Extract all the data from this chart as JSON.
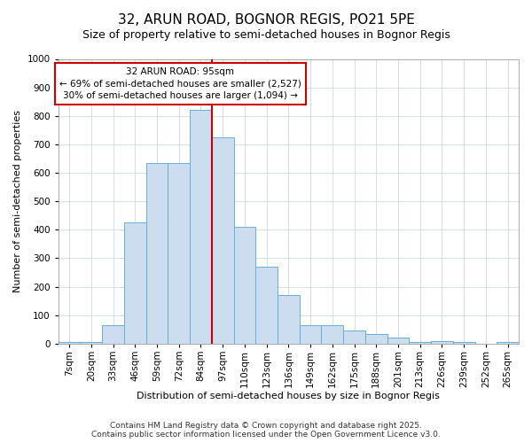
{
  "title1": "32, ARUN ROAD, BOGNOR REGIS, PO21 5PE",
  "title2": "Size of property relative to semi-detached houses in Bognor Regis",
  "xlabel": "Distribution of semi-detached houses by size in Bognor Regis",
  "ylabel": "Number of semi-detached properties",
  "categories": [
    "7sqm",
    "20sqm",
    "33sqm",
    "46sqm",
    "59sqm",
    "72sqm",
    "84sqm",
    "97sqm",
    "110sqm",
    "123sqm",
    "136sqm",
    "149sqm",
    "162sqm",
    "175sqm",
    "188sqm",
    "201sqm",
    "213sqm",
    "226sqm",
    "239sqm",
    "252sqm",
    "265sqm"
  ],
  "values": [
    5,
    5,
    65,
    425,
    635,
    635,
    820,
    725,
    410,
    270,
    170,
    65,
    65,
    45,
    35,
    20,
    5,
    10,
    5,
    0,
    5
  ],
  "bar_color": "#ccddef",
  "bar_edge_color": "#6aaed6",
  "vline_color": "#cc0000",
  "vline_x": 6.5,
  "annotation_line1": "32 ARUN ROAD: 95sqm",
  "annotation_line2": "← 69% of semi-detached houses are smaller (2,527)",
  "annotation_line3": "30% of semi-detached houses are larger (1,094) →",
  "annotation_box_color": "#ffffff",
  "annotation_box_edge": "#cc0000",
  "ylim": [
    0,
    1000
  ],
  "yticks": [
    0,
    100,
    200,
    300,
    400,
    500,
    600,
    700,
    800,
    900,
    1000
  ],
  "footer1": "Contains HM Land Registry data © Crown copyright and database right 2025.",
  "footer2": "Contains public sector information licensed under the Open Government Licence v3.0.",
  "bg_color": "#ffffff",
  "grid_color": "#d0d8e8",
  "title1_fontsize": 11,
  "title2_fontsize": 9,
  "xlabel_fontsize": 8,
  "ylabel_fontsize": 8,
  "tick_fontsize": 7.5,
  "footer_fontsize": 6.5
}
